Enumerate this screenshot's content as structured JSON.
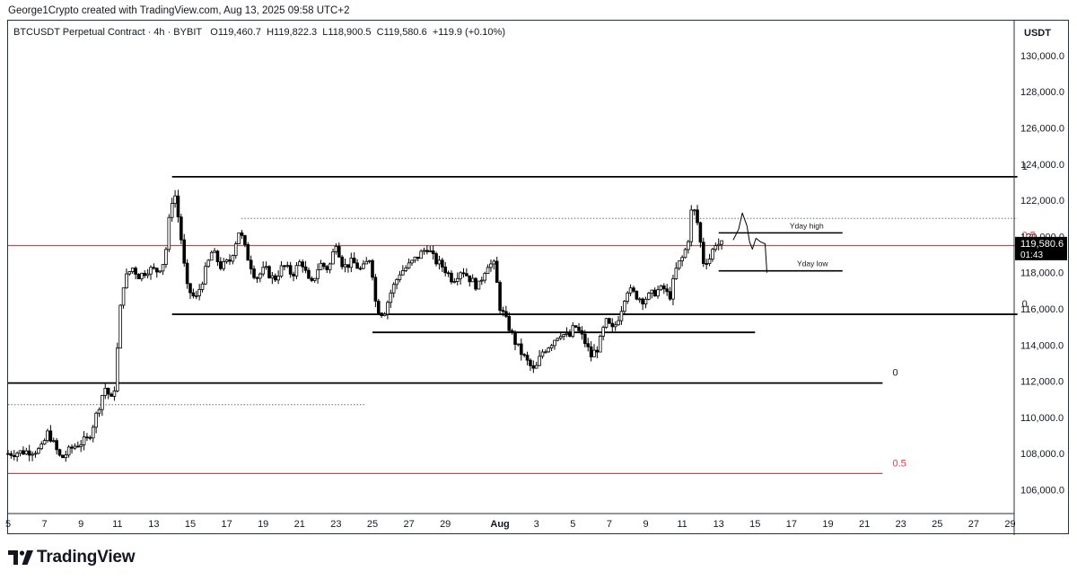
{
  "credit": "George1Crypto created with TradingView.com, Aug 13, 2025 09:58 UTC+2",
  "legend": {
    "symbol": "BTCUSDT Perpetual Contract · 4h · BYBIT",
    "open": "O119,460.7",
    "high": "H119,822.3",
    "low": "L118,900.5",
    "close": "C119,580.6",
    "change": "+119.9 (+0.10%)"
  },
  "axis_unit": "USDT",
  "price_tag": {
    "price": "119,580.6",
    "countdown": "01:43"
  },
  "brand": "TradingView",
  "colors": {
    "up": "#ffffff",
    "down": "#000000",
    "candle_outline": "#000000",
    "red_level": "#f23645",
    "price_tag_bg": "#000000",
    "text": "#131722"
  },
  "chart_data": {
    "type": "candlestick",
    "timeframe": "4h",
    "x_range": [
      "Jul 5",
      "Aug 29"
    ],
    "ylim": [
      104500,
      131000
    ],
    "yticks": [
      "106,000.0",
      "108,000.0",
      "110,000.0",
      "112,000.0",
      "114,000.0",
      "116,000.0",
      "118,000.0",
      "120,000.0",
      "122,000.0",
      "124,000.0",
      "126,000.0",
      "128,000.0",
      "130,000.0"
    ],
    "xticks": [
      {
        "day": 5,
        "label": "5"
      },
      {
        "day": 7,
        "label": "7"
      },
      {
        "day": 9,
        "label": "9"
      },
      {
        "day": 11,
        "label": "11"
      },
      {
        "day": 13,
        "label": "13"
      },
      {
        "day": 15,
        "label": "15"
      },
      {
        "day": 17,
        "label": "17"
      },
      {
        "day": 19,
        "label": "19"
      },
      {
        "day": 21,
        "label": "21"
      },
      {
        "day": 23,
        "label": "23"
      },
      {
        "day": 25,
        "label": "25"
      },
      {
        "day": 27,
        "label": "27"
      },
      {
        "day": 29,
        "label": "29"
      },
      {
        "day": 32,
        "label": "Aug"
      },
      {
        "day": 34,
        "label": "3"
      },
      {
        "day": 36,
        "label": "5"
      },
      {
        "day": 38,
        "label": "7"
      },
      {
        "day": 40,
        "label": "9"
      },
      {
        "day": 42,
        "label": "11"
      },
      {
        "day": 44,
        "label": "13"
      },
      {
        "day": 46,
        "label": "15"
      },
      {
        "day": 48,
        "label": "17"
      },
      {
        "day": 50,
        "label": "19"
      },
      {
        "day": 52,
        "label": "21"
      },
      {
        "day": 54,
        "label": "23"
      },
      {
        "day": 56,
        "label": "25"
      },
      {
        "day": 58,
        "label": "27"
      },
      {
        "day": 60,
        "label": "29"
      }
    ],
    "path": [
      [
        5.0,
        108000
      ],
      [
        5.8,
        108100
      ],
      [
        6.8,
        108200
      ],
      [
        7.2,
        109200
      ],
      [
        7.6,
        108300
      ],
      [
        7.9,
        107700
      ],
      [
        8.6,
        108400
      ],
      [
        9.4,
        108800
      ],
      [
        9.8,
        110000
      ],
      [
        10.3,
        111700
      ],
      [
        10.7,
        110900
      ],
      [
        10.9,
        112000
      ],
      [
        11.1,
        115500
      ],
      [
        11.35,
        117500
      ],
      [
        11.8,
        118300
      ],
      [
        12.2,
        117800
      ],
      [
        12.7,
        118200
      ],
      [
        13.2,
        118100
      ],
      [
        13.6,
        118700
      ],
      [
        13.85,
        121000
      ],
      [
        14.1,
        122700
      ],
      [
        14.45,
        120300
      ],
      [
        14.8,
        117200
      ],
      [
        15.3,
        116500
      ],
      [
        15.7,
        117700
      ],
      [
        16.2,
        119200
      ],
      [
        16.7,
        118300
      ],
      [
        17.2,
        118700
      ],
      [
        17.7,
        120400
      ],
      [
        18.1,
        119000
      ],
      [
        18.6,
        117700
      ],
      [
        19.1,
        118200
      ],
      [
        19.6,
        117600
      ],
      [
        20.1,
        118400
      ],
      [
        20.6,
        117900
      ],
      [
        21.1,
        118700
      ],
      [
        21.6,
        117200
      ],
      [
        22.1,
        118500
      ],
      [
        22.6,
        118200
      ],
      [
        23.0,
        119700
      ],
      [
        23.4,
        118300
      ],
      [
        23.9,
        118600
      ],
      [
        24.4,
        118100
      ],
      [
        24.9,
        118900
      ],
      [
        25.2,
        116100
      ],
      [
        25.6,
        115700
      ],
      [
        26.0,
        116900
      ],
      [
        26.5,
        118000
      ],
      [
        27.0,
        118400
      ],
      [
        27.6,
        119000
      ],
      [
        28.0,
        119400
      ],
      [
        28.4,
        118700
      ],
      [
        28.9,
        118300
      ],
      [
        29.4,
        117600
      ],
      [
        29.9,
        118200
      ],
      [
        30.4,
        117600
      ],
      [
        30.8,
        117200
      ],
      [
        31.3,
        118500
      ],
      [
        31.7,
        118400
      ],
      [
        32.0,
        116100
      ],
      [
        32.4,
        115200
      ],
      [
        32.9,
        114000
      ],
      [
        33.4,
        113200
      ],
      [
        33.9,
        112500
      ],
      [
        34.3,
        113600
      ],
      [
        34.8,
        114100
      ],
      [
        35.3,
        114700
      ],
      [
        35.8,
        114400
      ],
      [
        36.1,
        115100
      ],
      [
        36.6,
        114300
      ],
      [
        37.0,
        113400
      ],
      [
        37.4,
        113900
      ],
      [
        37.8,
        115300
      ],
      [
        38.2,
        114800
      ],
      [
        38.6,
        115800
      ],
      [
        38.95,
        117100
      ],
      [
        39.4,
        116800
      ],
      [
        39.8,
        116500
      ],
      [
        40.2,
        116700
      ],
      [
        40.6,
        117000
      ],
      [
        41.0,
        117100
      ],
      [
        41.3,
        116600
      ],
      [
        41.7,
        118300
      ],
      [
        42.0,
        118800
      ],
      [
        42.3,
        119600
      ],
      [
        42.55,
        121800
      ],
      [
        42.85,
        120700
      ],
      [
        43.15,
        118600
      ],
      [
        43.5,
        118800
      ],
      [
        43.85,
        119700
      ],
      [
        44.1,
        119500
      ],
      [
        44.2,
        119580
      ]
    ],
    "levels": [
      {
        "price": 123300,
        "x_start": 14.0,
        "x_end": 60.4,
        "color": "#000000",
        "label": "1",
        "label_day": 60.4
      },
      {
        "price": 119500,
        "x_start": 5.0,
        "x_end": 60.4,
        "color": "#f23645",
        "label": "0.5",
        "label_day": 60.4
      },
      {
        "price": 115700,
        "x_start": 14.0,
        "x_end": 60.4,
        "color": "#000000",
        "label": "0",
        "label_day": 60.4
      },
      {
        "price": 114700,
        "x_start": 25.0,
        "x_end": 46.0,
        "color": "#000000",
        "label": "",
        "label_day": 0
      },
      {
        "price": 111900,
        "x_start": 5.0,
        "x_end": 53.0,
        "color": "#000000",
        "label": "0",
        "label_day": 53.3
      },
      {
        "price": 106900,
        "x_start": 5.0,
        "x_end": 53.0,
        "color": "#f23645",
        "label": "0.5",
        "label_day": 53.3
      }
    ],
    "dotted_levels": [
      {
        "price": 121000,
        "x_start": 17.8,
        "x_end": 60.4
      },
      {
        "price": 110700,
        "x_start": 5.0,
        "x_end": 24.6
      }
    ],
    "annotations": [
      {
        "text": "Yday high",
        "price": 120200,
        "x_start": 44.0,
        "x_end": 50.8,
        "label_day": 47.9
      },
      {
        "text": "Yday low",
        "price": 118100,
        "x_start": 44.0,
        "x_end": 50.8,
        "label_day": 48.3
      }
    ],
    "projection": [
      [
        44.8,
        119800
      ],
      [
        45.1,
        120400
      ],
      [
        45.3,
        121300
      ],
      [
        45.55,
        120600
      ],
      [
        45.7,
        119700
      ],
      [
        45.85,
        119300
      ],
      [
        46.05,
        119900
      ],
      [
        46.3,
        119700
      ],
      [
        46.55,
        119600
      ],
      [
        46.65,
        118000
      ]
    ]
  }
}
